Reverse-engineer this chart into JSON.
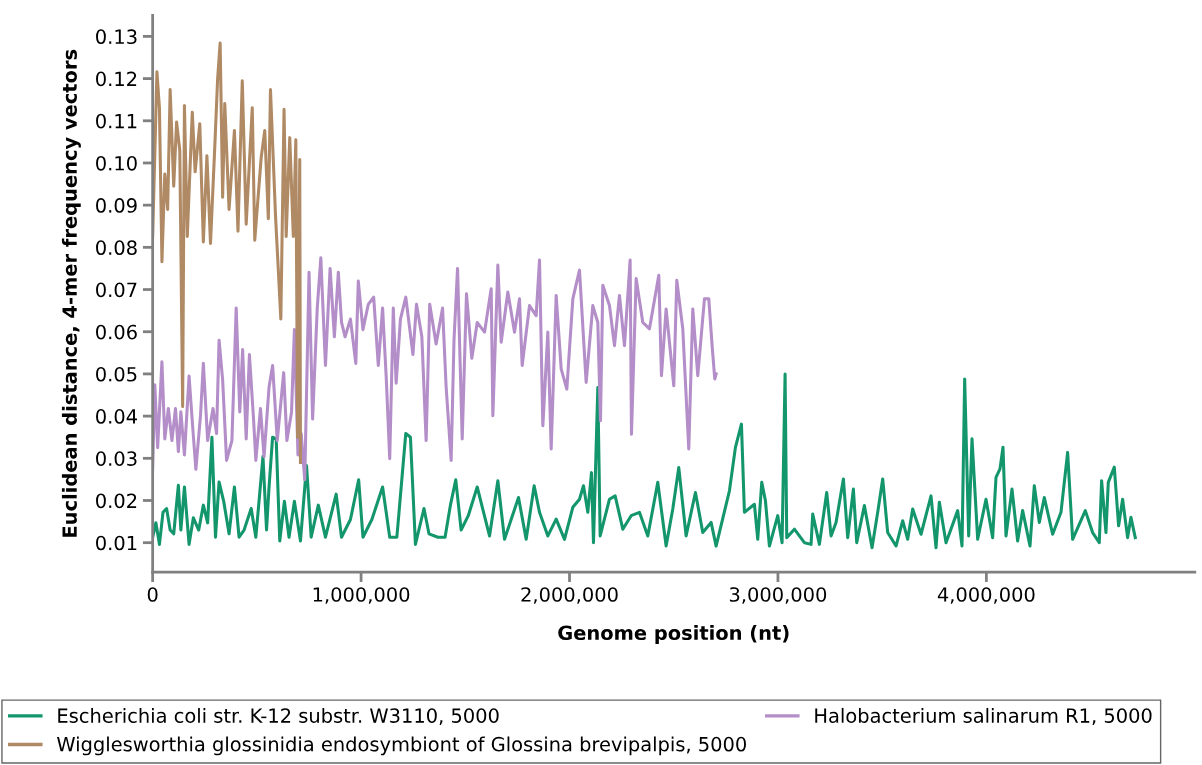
{
  "chart_data": {
    "type": "line",
    "xlabel": "Genome position (nt)",
    "ylabel": "Euclidean distance, 4-mer frequency vectors",
    "xlim": [
      0,
      5000000
    ],
    "ylim": [
      0.003,
      0.135
    ],
    "xticks": [
      {
        "value": 0,
        "label": "0"
      },
      {
        "value": 1000000,
        "label": "1,000,000"
      },
      {
        "value": 2000000,
        "label": "2,000,000"
      },
      {
        "value": 3000000,
        "label": "3,000,000"
      },
      {
        "value": 4000000,
        "label": "4,000,000"
      }
    ],
    "yticks": [
      0.01,
      0.02,
      0.03,
      0.04,
      0.05,
      0.06,
      0.07,
      0.08,
      0.09,
      {
        "value": 0.1,
        "label": "0.10"
      },
      0.11,
      0.12,
      0.13
    ],
    "grid": false,
    "legend": "bottom",
    "marker": "none",
    "line_style": "solid",
    "series": [
      {
        "name": "Escherichia coli str. K-12 substr. W3110, 5000",
        "color": "#14966c",
        "x": [
          0,
          15420,
          32550,
          49680,
          66810,
          83940,
          101070,
          123340,
          135330,
          152460,
          174730,
          195280,
          220980,
          243250,
          263800,
          284360,
          301490,
          318620,
          340890,
          366580,
          392280,
          414550,
          438530,
          472790,
          495050,
          529310,
          546440,
          558440,
          575570,
          592700,
          609830,
          632100,
          654370,
          680060,
          709190,
          738300,
          760570,
          794830,
          829090,
          880480,
          906170,
          949000,
          988400,
          1008960,
          1051780,
          1103170,
          1137430,
          1171690,
          1214520,
          1236790,
          1260770,
          1301780,
          1325850,
          1368670,
          1402930,
          1428630,
          1454330,
          1480030,
          1514290,
          1557120,
          1616250,
          1656210,
          1688190,
          1755340,
          1792100,
          1830470,
          1856050,
          1896020,
          1935990,
          1975950,
          2015940,
          2047890,
          2067080,
          2087850,
          2105440,
          2115040,
          2135820,
          2147010,
          2191770,
          2218950,
          2255700,
          2295700,
          2335650,
          2375600,
          2423560,
          2463560,
          2495480,
          2524280,
          2559450,
          2604230,
          2639390,
          2679370,
          2703360,
          2767290,
          2796070,
          2824840,
          2839230,
          2887190,
          2903170,
          2922350,
          2939950,
          2959130,
          2999090,
          3019900,
          3034290,
          3042270,
          3079030,
          3126990,
          3158980,
          3166960,
          3198930,
          3234080,
          3254900,
          3278880,
          3314040,
          3334810,
          3362000,
          3377990,
          3414770,
          3451520,
          3478690,
          3502660,
          3526640,
          3566640,
          3598580,
          3622570,
          3646540,
          3686550,
          3734500,
          3758480,
          3774450,
          3806440,
          3862380,
          3883180,
          3895950,
          3915120,
          3931130,
          3958300,
          3998280,
          4030230,
          4046240,
          4065420,
          4079810,
          4094200,
          4122970,
          4150130,
          4174100,
          4209300,
          4230070,
          4254050,
          4278030,
          4317980,
          4357980,
          4389930,
          4413900,
          4474670,
          4509820,
          4541810,
          4552990,
          4573800,
          4584980,
          4613760,
          4634530,
          4653700,
          4677690,
          4693700,
          4714470
        ],
        "values": [
          0.0113,
          0.0147,
          0.0096,
          0.0172,
          0.0181,
          0.013,
          0.0121,
          0.0236,
          0.013,
          0.0232,
          0.0096,
          0.0159,
          0.013,
          0.0189,
          0.0147,
          0.035,
          0.0113,
          0.0244,
          0.0198,
          0.0121,
          0.0232,
          0.0113,
          0.013,
          0.0181,
          0.0113,
          0.0304,
          0.013,
          0.0232,
          0.035,
          0.0346,
          0.0104,
          0.0198,
          0.0113,
          0.0198,
          0.0104,
          0.0283,
          0.0113,
          0.0189,
          0.0113,
          0.0215,
          0.0113,
          0.0155,
          0.0249,
          0.0113,
          0.0155,
          0.0232,
          0.0113,
          0.0113,
          0.0359,
          0.035,
          0.0096,
          0.0181,
          0.0121,
          0.0113,
          0.0113,
          0.0189,
          0.0249,
          0.013,
          0.0164,
          0.0232,
          0.0116,
          0.0247,
          0.0108,
          0.0207,
          0.0108,
          0.0235,
          0.0172,
          0.0116,
          0.0156,
          0.0108,
          0.0184,
          0.0203,
          0.0235,
          0.0172,
          0.0266,
          0.01,
          0.0468,
          0.0116,
          0.0203,
          0.0211,
          0.0132,
          0.0164,
          0.0172,
          0.0116,
          0.0243,
          0.0092,
          0.018,
          0.0278,
          0.0116,
          0.0219,
          0.0124,
          0.0148,
          0.0092,
          0.0223,
          0.0326,
          0.0381,
          0.0172,
          0.0191,
          0.0108,
          0.0243,
          0.02,
          0.0092,
          0.0164,
          0.01,
          0.05,
          0.0112,
          0.0132,
          0.01,
          0.0096,
          0.0168,
          0.0096,
          0.0219,
          0.0116,
          0.0148,
          0.0251,
          0.0112,
          0.0227,
          0.01,
          0.0188,
          0.0088,
          0.0172,
          0.0251,
          0.0124,
          0.0092,
          0.0152,
          0.0108,
          0.018,
          0.012,
          0.0211,
          0.0088,
          0.0196,
          0.01,
          0.0176,
          0.0092,
          0.0488,
          0.0116,
          0.0346,
          0.0108,
          0.0203,
          0.0112,
          0.0255,
          0.0275,
          0.0326,
          0.0116,
          0.0227,
          0.0104,
          0.0176,
          0.0092,
          0.0235,
          0.0148,
          0.0207,
          0.012,
          0.0172,
          0.0314,
          0.0108,
          0.0176,
          0.0124,
          0.01,
          0.0247,
          0.0124,
          0.0243,
          0.0279,
          0.014,
          0.0203,
          0.0112,
          0.016,
          0.0112
        ]
      },
      {
        "name": "Halobacterium salinarum R1, 5000",
        "color": "#b48ec8",
        "x": [
          0,
          10280,
          23980,
          44540,
          58240,
          75370,
          92500,
          109630,
          123340,
          135330,
          152460,
          174730,
          191860,
          207270,
          229540,
          243250,
          263800,
          289500,
          306630,
          318620,
          335750,
          354590,
          380290,
          400840,
          417970,
          431680,
          448810,
          464220,
          483060,
          495050,
          517330,
          534460,
          558440,
          575570,
          597840,
          628670,
          644090,
          666360,
          680060,
          697190,
          712610,
          729740,
          750290,
          767420,
          789690,
          806820,
          829090,
          851360,
          871920,
          890760,
          906170,
          923310,
          949000,
          974700,
          986690,
          1008960,
          1034650,
          1060350,
          1082620,
          1103170,
          1120300,
          1137430,
          1154560,
          1168270,
          1188820,
          1214520,
          1248780,
          1265910,
          1291600,
          1312160,
          1329290,
          1360120,
          1390960,
          1408090,
          1432070,
          1445780,
          1462910,
          1485180,
          1505730,
          1531430,
          1557120,
          1592270,
          1624250,
          1632230,
          1656210,
          1672200,
          1704170,
          1736150,
          1760130,
          1772920,
          1808090,
          1840060,
          1856050,
          1872030,
          1896020,
          1912010,
          1935990,
          1959970,
          1987140,
          2015940,
          2047890,
          2079860,
          2111830,
          2135820,
          2148610,
          2159800,
          2191770,
          2215750,
          2239730,
          2263710,
          2290900,
          2297280,
          2319670,
          2351630,
          2383610,
          2428370,
          2441160,
          2463560,
          2500300,
          2514690,
          2543460,
          2572230,
          2591430,
          2615410,
          2647390,
          2668180,
          2684170,
          2696940,
          2703360
        ],
        "values": [
          0.0274,
          0.0474,
          0.0325,
          0.0529,
          0.0346,
          0.0418,
          0.0342,
          0.0418,
          0.0316,
          0.041,
          0.0308,
          0.0495,
          0.0376,
          0.0274,
          0.0401,
          0.0525,
          0.0342,
          0.0418,
          0.0359,
          0.058,
          0.0486,
          0.0295,
          0.0342,
          0.0656,
          0.041,
          0.0558,
          0.0346,
          0.0546,
          0.0401,
          0.0295,
          0.0418,
          0.0304,
          0.0469,
          0.052,
          0.0342,
          0.0503,
          0.0342,
          0.041,
          0.0605,
          0.0308,
          0.0359,
          0.0249,
          0.0741,
          0.0393,
          0.0656,
          0.0775,
          0.052,
          0.075,
          0.0588,
          0.0741,
          0.0622,
          0.0588,
          0.063,
          0.0525,
          0.072,
          0.0605,
          0.0665,
          0.0682,
          0.052,
          0.0656,
          0.0495,
          0.0299,
          0.0656,
          0.0478,
          0.063,
          0.0682,
          0.0546,
          0.0665,
          0.0588,
          0.0342,
          0.0665,
          0.0571,
          0.0656,
          0.0469,
          0.0295,
          0.058,
          0.075,
          0.0346,
          0.069,
          0.0537,
          0.0622,
          0.0599,
          0.0702,
          0.0401,
          0.0758,
          0.0575,
          0.0694,
          0.0599,
          0.0678,
          0.052,
          0.0662,
          0.0638,
          0.077,
          0.0377,
          0.0599,
          0.0322,
          0.0686,
          0.0512,
          0.0464,
          0.0678,
          0.0746,
          0.048,
          0.0662,
          0.0622,
          0.0389,
          0.071,
          0.0662,
          0.0567,
          0.0686,
          0.0567,
          0.077,
          0.0357,
          0.0726,
          0.0622,
          0.0607,
          0.0734,
          0.0496,
          0.0654,
          0.0472,
          0.0722,
          0.0607,
          0.0322,
          0.0654,
          0.0496,
          0.0678,
          0.0678,
          0.0567,
          0.0488,
          0.05
        ]
      },
      {
        "name": "Wigglesworthia glossinidia endosymbiont of Glossina brevipalpis, 5000",
        "color": "#b08a64",
        "x": [
          0,
          20560,
          32550,
          44540,
          58240,
          71950,
          83940,
          101070,
          114770,
          130190,
          143890,
          152460,
          166160,
          190140,
          203850,
          226120,
          243250,
          260380,
          277510,
          298060,
          311770,
          323760,
          335750,
          346030,
          366580,
          392280,
          409410,
          429960,
          448800,
          477920,
          489920,
          520750,
          537880,
          555010,
          565290,
          589270,
          614970,
          630380,
          640660,
          657790,
          674920,
          686910,
          695480,
          705760,
          709190
        ],
        "values": [
          0.0826,
          0.1216,
          0.113,
          0.0766,
          0.0974,
          0.089,
          0.1174,
          0.0945,
          0.1097,
          0.103,
          0.0423,
          0.1136,
          0.0826,
          0.112,
          0.0979,
          0.1093,
          0.0813,
          0.1017,
          0.0809,
          0.1038,
          0.12,
          0.1284,
          0.0919,
          0.1141,
          0.089,
          0.1077,
          0.0838,
          0.1195,
          0.0855,
          0.1131,
          0.0817,
          0.1013,
          0.1077,
          0.0868,
          0.1174,
          0.0877,
          0.063,
          0.1127,
          0.0826,
          0.106,
          0.0826,
          0.1055,
          0.035,
          0.1008,
          0.029
        ]
      }
    ]
  }
}
